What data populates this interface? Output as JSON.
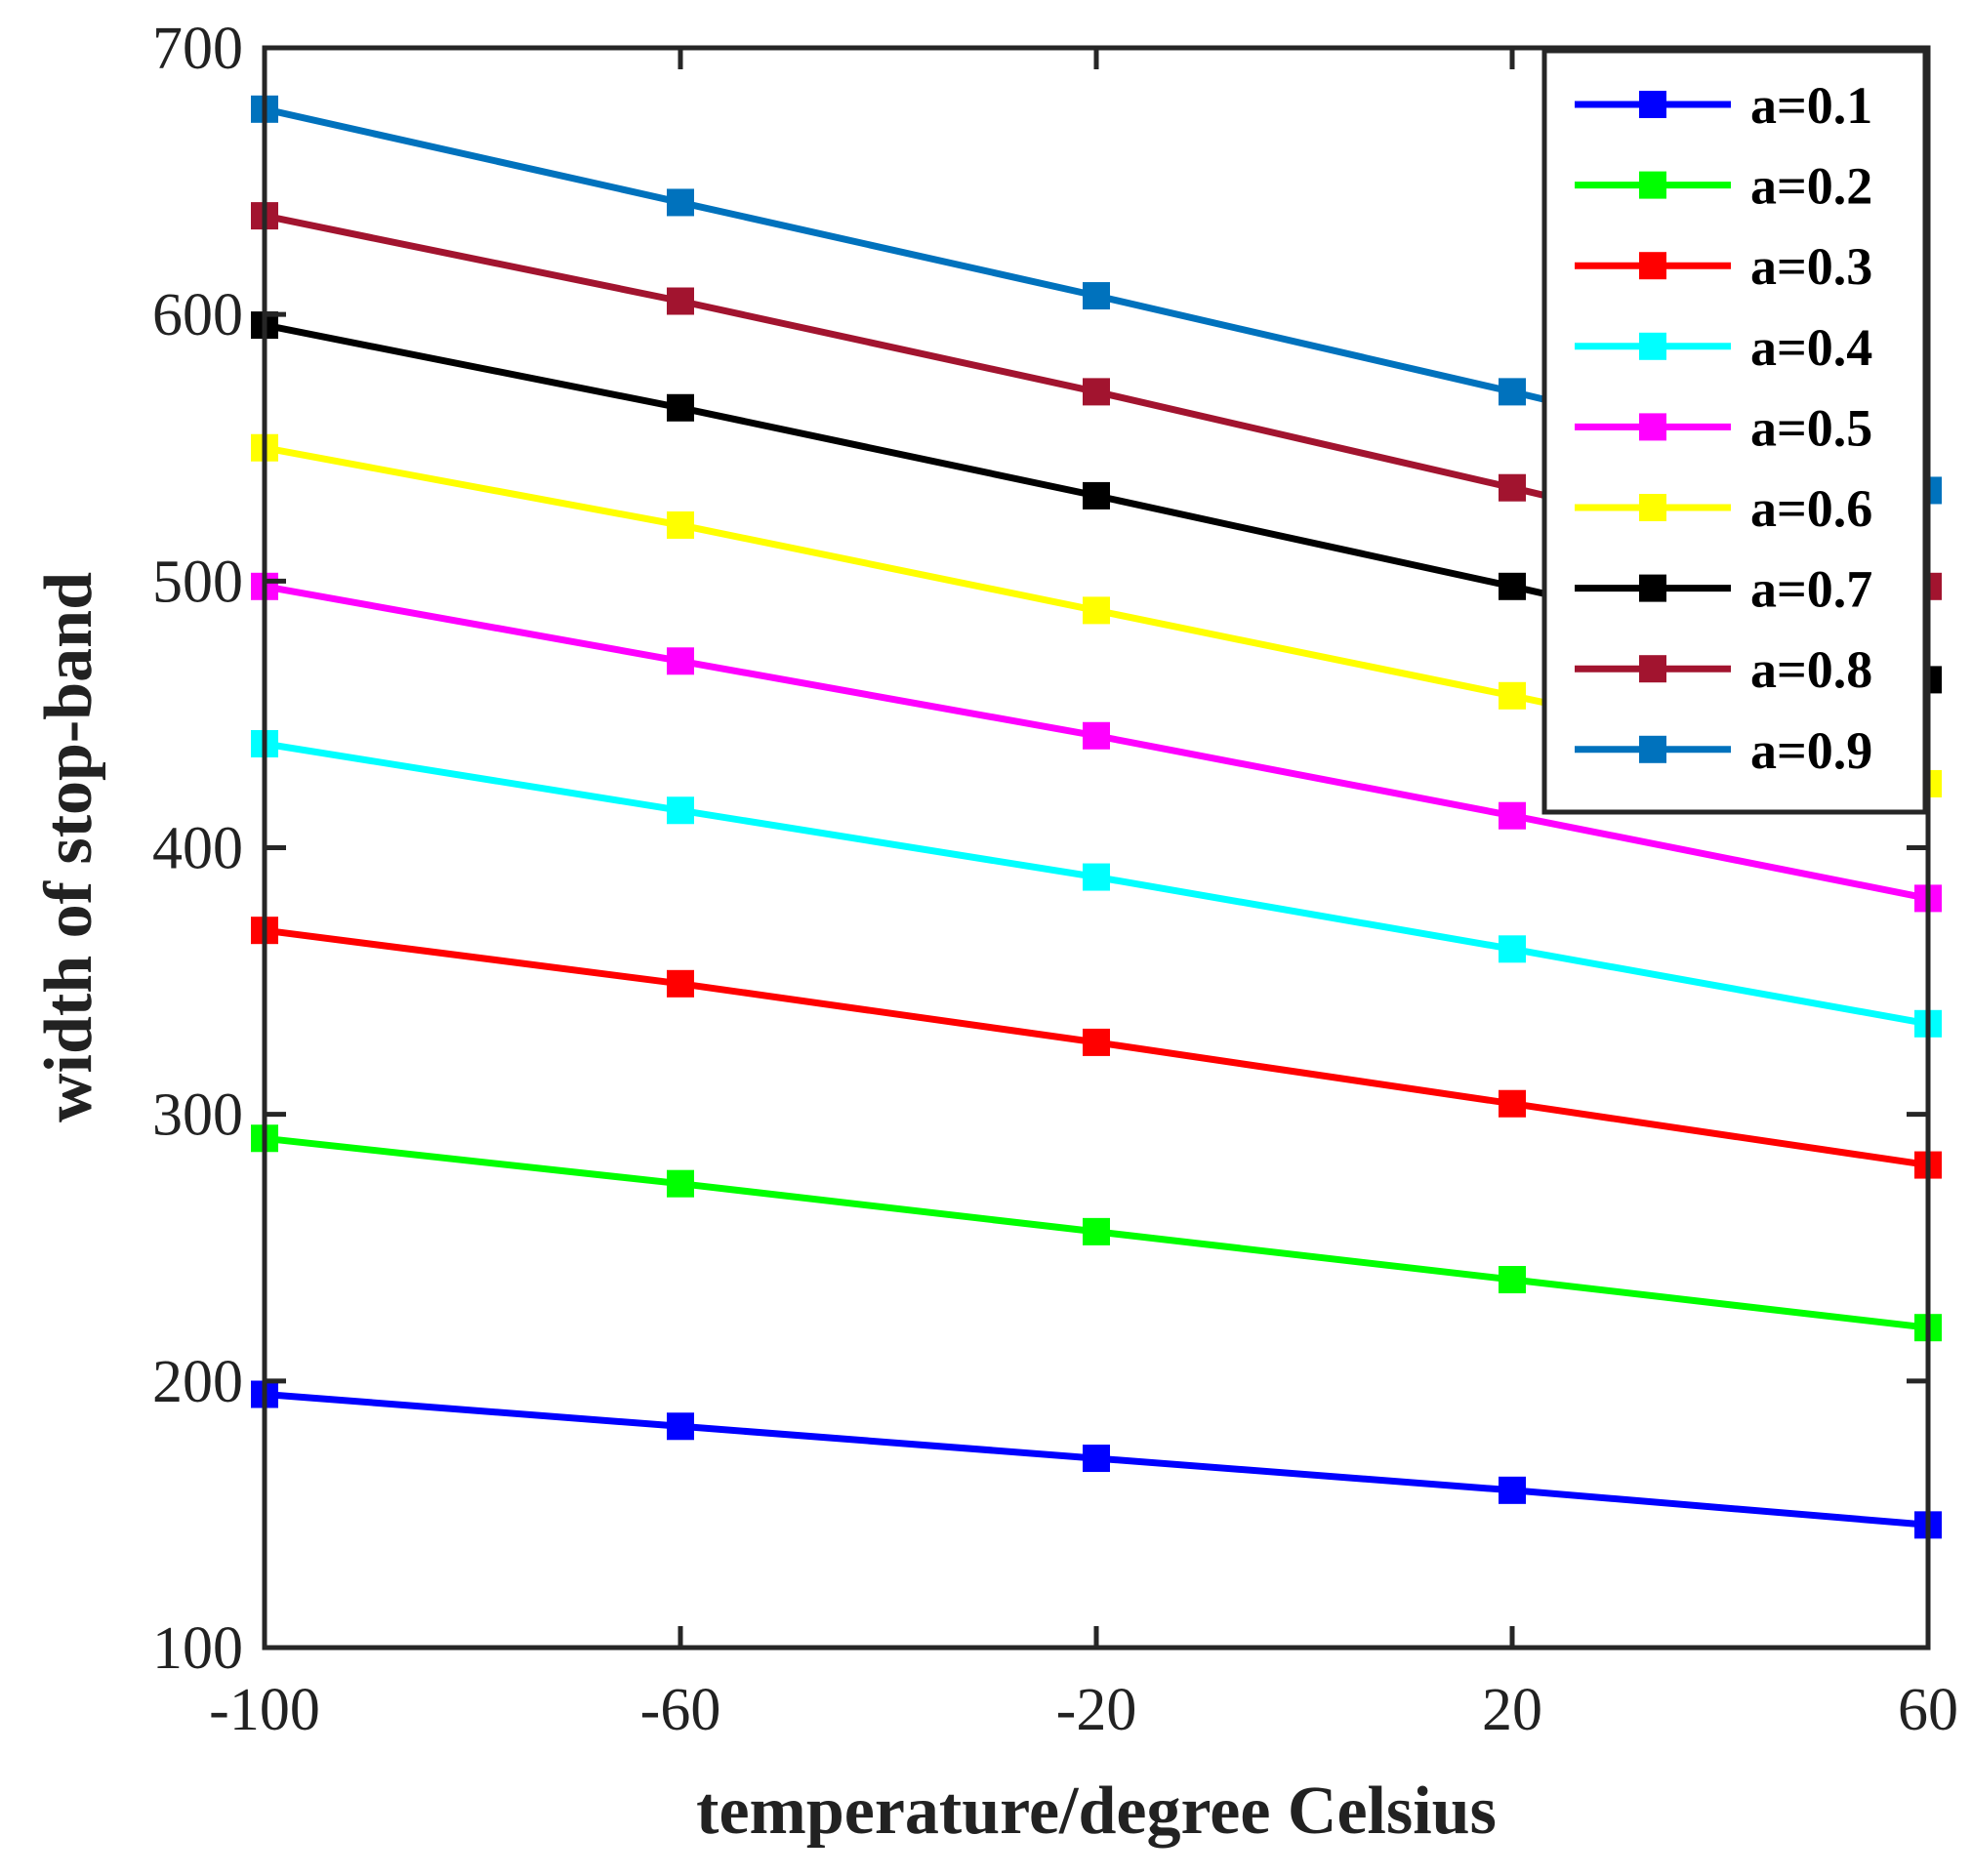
{
  "chart_data": {
    "type": "line",
    "title": "",
    "xlabel": "temperature/degree Celsius",
    "ylabel": "width of stop-band",
    "x": [
      -100,
      -60,
      -20,
      20,
      60
    ],
    "xlim": [
      -100,
      60
    ],
    "ylim": [
      100,
      700
    ],
    "xticks": [
      "-100",
      "-60",
      "-20",
      "20",
      "60"
    ],
    "yticks": [
      "100",
      "200",
      "300",
      "400",
      "500",
      "600",
      "700"
    ],
    "grid": false,
    "legend_position": "top-right",
    "marker": "square",
    "series": [
      {
        "name": "a=0.1",
        "color": "#0000FF",
        "values": [
          195,
          183,
          171,
          159,
          146
        ]
      },
      {
        "name": "a=0.2",
        "color": "#00FF00",
        "values": [
          291,
          274,
          256,
          238,
          220
        ]
      },
      {
        "name": "a=0.3",
        "color": "#FF0000",
        "values": [
          369,
          349,
          327,
          304,
          281
        ]
      },
      {
        "name": "a=0.4",
        "color": "#00FFFF",
        "values": [
          439,
          414,
          389,
          362,
          334
        ]
      },
      {
        "name": "a=0.5",
        "color": "#FF00FF",
        "values": [
          498,
          470,
          442,
          412,
          381
        ]
      },
      {
        "name": "a=0.6",
        "color": "#FFFF00",
        "values": [
          550,
          521,
          489,
          457,
          424
        ]
      },
      {
        "name": "a=0.7",
        "color": "#000000",
        "values": [
          596,
          565,
          532,
          498,
          463
        ]
      },
      {
        "name": "a=0.8",
        "color": "#A2142F",
        "values": [
          637,
          605,
          571,
          535,
          498
        ]
      },
      {
        "name": "a=0.9",
        "color": "#0072BD",
        "values": [
          677,
          642,
          607,
          571,
          534
        ]
      }
    ]
  }
}
